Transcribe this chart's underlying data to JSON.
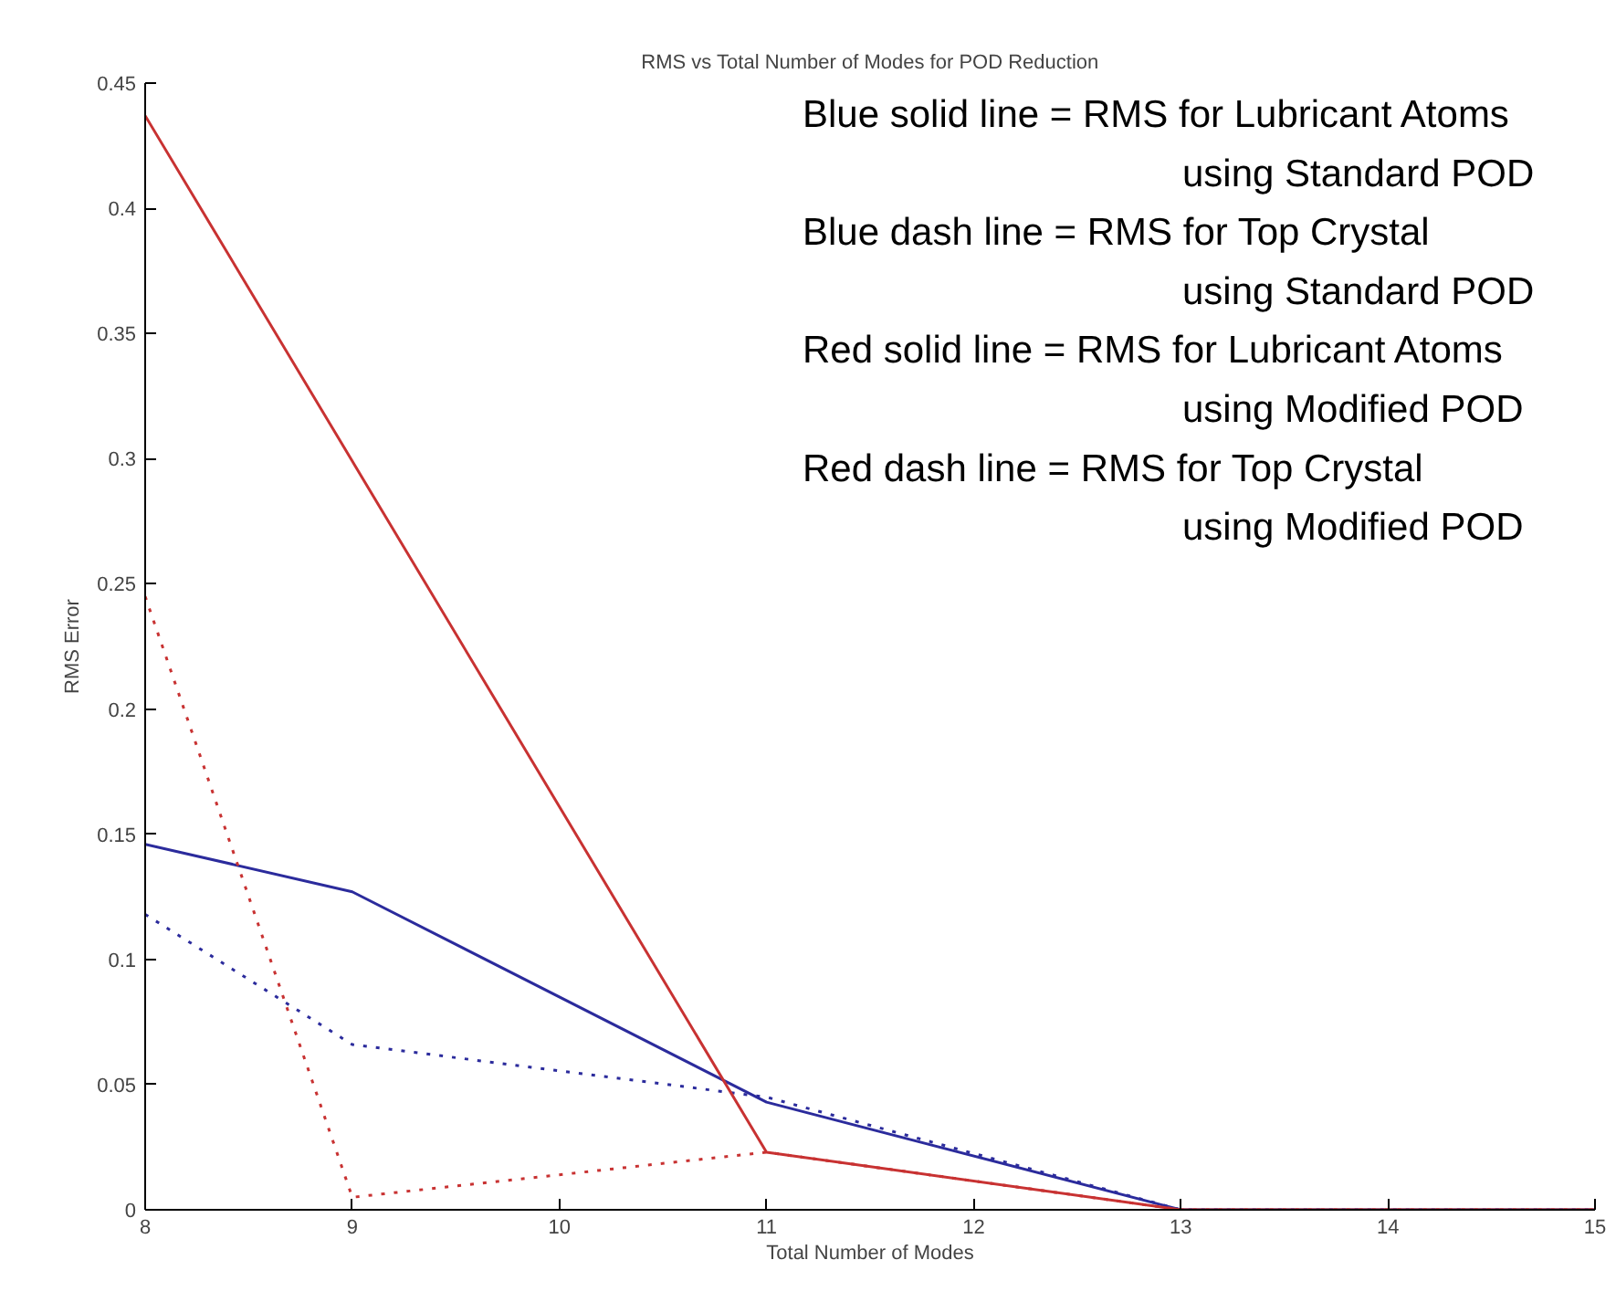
{
  "chart_data": {
    "type": "line",
    "title": "RMS vs Total Number of Modes for POD Reduction",
    "xlabel": "Total Number of Modes",
    "ylabel": "RMS Error",
    "x": [
      8,
      9,
      11,
      13,
      15
    ],
    "series": [
      {
        "color": "#2b2b9c",
        "line_style": "solid",
        "values": [
          0.146,
          0.127,
          0.043,
          0,
          0
        ]
      },
      {
        "color": "#2b2b9c",
        "line_style": "dotted",
        "values": [
          0.118,
          0.066,
          0.045,
          0,
          0
        ]
      },
      {
        "color": "#c83232",
        "line_style": "solid",
        "values": [
          0.437,
          0.299,
          0.023,
          0,
          0
        ]
      },
      {
        "color": "#c83232",
        "line_style": "dotted",
        "values": [
          0.245,
          0.005,
          0.023,
          0,
          0
        ]
      }
    ],
    "xlim": [
      8,
      15
    ],
    "xticks": [
      8,
      9,
      10,
      11,
      12,
      13,
      14,
      15
    ],
    "ylim": [
      0,
      0.45
    ],
    "yticks": [
      0,
      0.05,
      0.1,
      0.15,
      0.2,
      0.25,
      0.3,
      0.35,
      0.4,
      0.45
    ],
    "grid": false,
    "marker": "none",
    "annotations": [
      "Blue solid line = RMS for Lubricant Atoms",
      "using Standard POD",
      "Blue dash line = RMS for Top Crystal",
      "using Standard POD",
      "Red solid line = RMS for Lubricant Atoms",
      "using Modified POD",
      "Red dash line = RMS for Top Crystal",
      "using Modified POD"
    ]
  }
}
